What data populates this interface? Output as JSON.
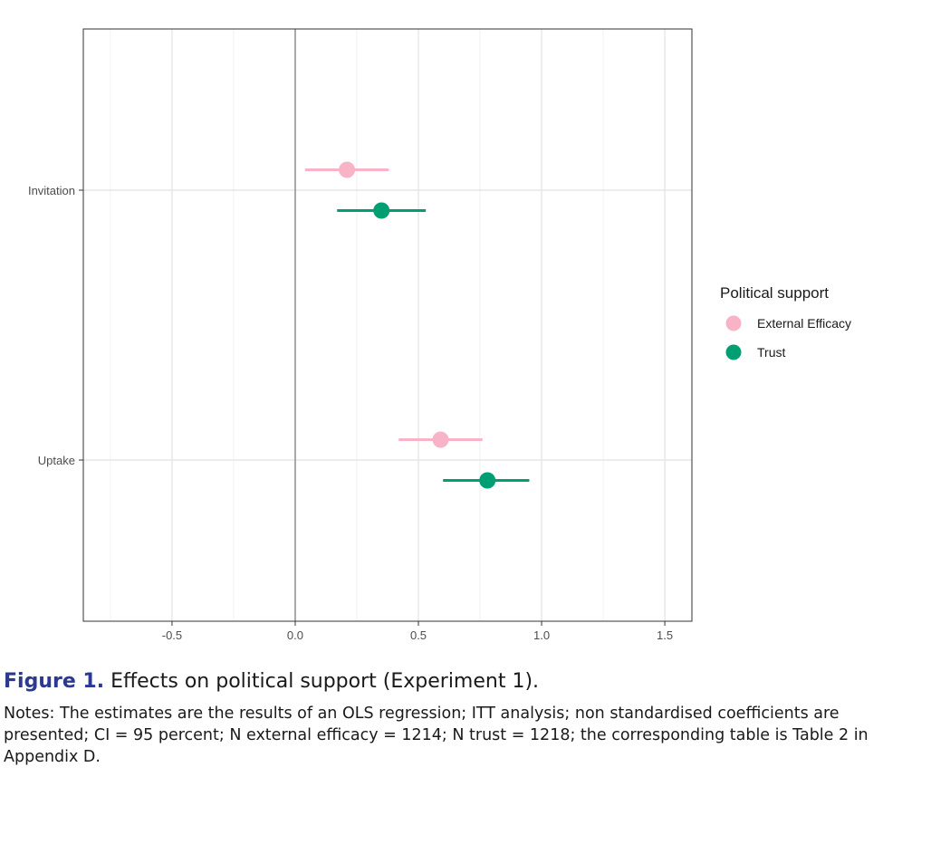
{
  "chart_data": {
    "type": "scatter",
    "subtype": "coefficient-plot-with-error-bars",
    "x_ticks": [
      -0.5,
      0.0,
      0.5,
      1.0,
      1.5
    ],
    "x_tick_labels": [
      "-0.5",
      "0.0",
      "0.5",
      "1.0",
      "1.5"
    ],
    "xlim": [
      -0.86,
      1.61
    ],
    "categories": [
      "Invitation",
      "Uptake"
    ],
    "reference_line_x": 0,
    "grid": true,
    "legend": {
      "title": "Political support",
      "position": "right",
      "entries": [
        "External Efficacy",
        "Trust"
      ]
    },
    "series": [
      {
        "name": "External Efficacy",
        "color": "#f9b3c6",
        "points": [
          {
            "category": "Invitation",
            "estimate": 0.21,
            "ci_low": 0.04,
            "ci_high": 0.38
          },
          {
            "category": "Uptake",
            "estimate": 0.59,
            "ci_low": 0.42,
            "ci_high": 0.76
          }
        ]
      },
      {
        "name": "Trust",
        "color": "#009e73",
        "points": [
          {
            "category": "Invitation",
            "estimate": 0.35,
            "ci_low": 0.17,
            "ci_high": 0.53
          },
          {
            "category": "Uptake",
            "estimate": 0.78,
            "ci_low": 0.6,
            "ci_high": 0.95
          }
        ]
      }
    ]
  },
  "caption": {
    "label": "Figure 1.",
    "title": "Effects on political support (Experiment 1).",
    "notes": "Notes: The estimates are the results of an OLS regression; ITT analysis; non standardised coefficients are presented; CI = 95 percent; N external efficacy = 1214; N trust = 1218; the corresponding table is Table 2 in Appendix D."
  }
}
